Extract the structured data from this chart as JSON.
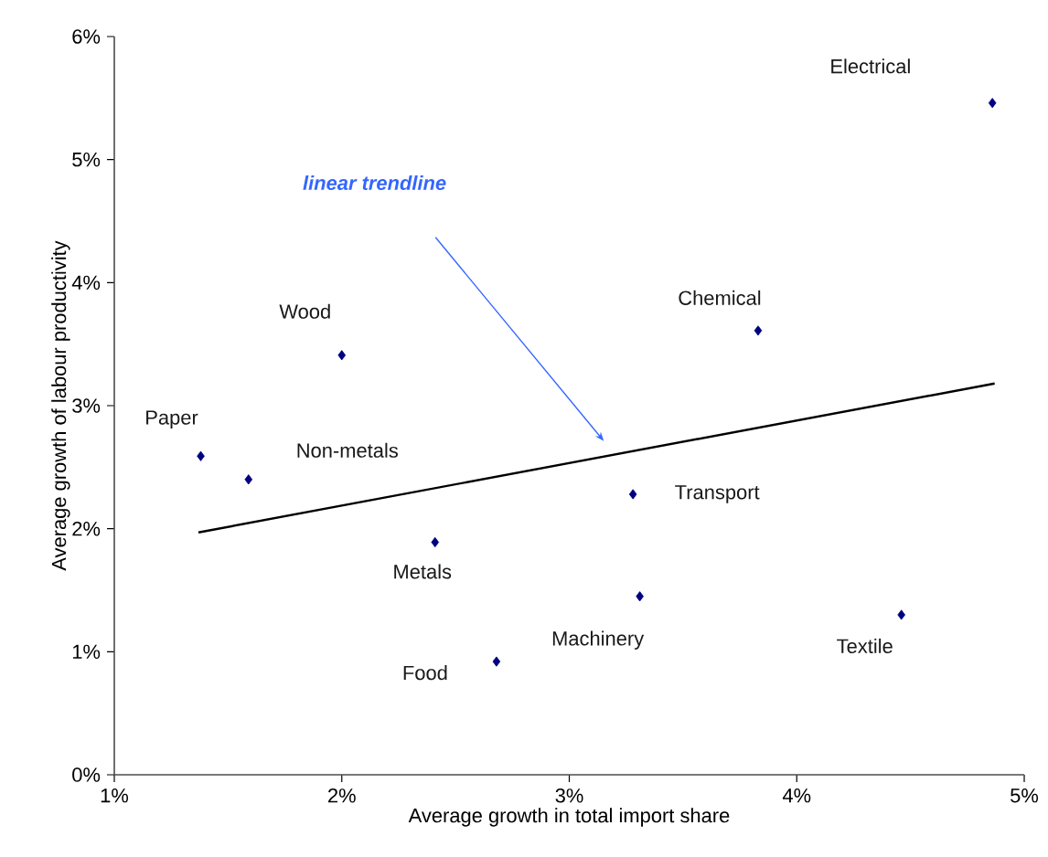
{
  "chart_data": {
    "type": "scatter",
    "xlabel": "Average growth in total import share",
    "ylabel": "Average growth of labour productivity",
    "xlim": [
      1,
      5
    ],
    "ylim": [
      0,
      6
    ],
    "xticks": [
      {
        "value": 1,
        "label": "1%"
      },
      {
        "value": 2,
        "label": "2%"
      },
      {
        "value": 3,
        "label": "3%"
      },
      {
        "value": 4,
        "label": "4%"
      },
      {
        "value": 5,
        "label": "5%"
      }
    ],
    "yticks": [
      {
        "value": 0,
        "label": "0%"
      },
      {
        "value": 1,
        "label": "1%"
      },
      {
        "value": 2,
        "label": "2%"
      },
      {
        "value": 3,
        "label": "3%"
      },
      {
        "value": 4,
        "label": "4%"
      },
      {
        "value": 5,
        "label": "5%"
      },
      {
        "value": 6,
        "label": "6%"
      }
    ],
    "grid": false,
    "series": [
      {
        "type": "scatter",
        "color": "#000080",
        "marker": "diamond",
        "x": [
          1.38,
          1.59,
          2.0,
          2.41,
          2.68,
          3.31,
          3.28,
          3.83,
          4.46,
          4.86
        ],
        "values": [
          2.59,
          2.4,
          3.41,
          1.89,
          0.92,
          1.45,
          2.28,
          3.61,
          1.3,
          5.46
        ]
      },
      {
        "type": "line",
        "color": "#000000",
        "marker": "none",
        "line_style": "solid",
        "x": [
          1.37,
          4.87
        ],
        "values": [
          1.97,
          3.18
        ]
      }
    ],
    "annotations": [
      "linear trendline",
      {
        "text": "Paper",
        "x": 1.38,
        "y": 2.59
      },
      {
        "text": "Non-metals",
        "x": 1.59,
        "y": 2.4
      },
      {
        "text": "Wood",
        "x": 2.0,
        "y": 3.41
      },
      {
        "text": "Metals",
        "x": 2.41,
        "y": 1.89
      },
      {
        "text": "Food",
        "x": 2.68,
        "y": 0.92
      },
      {
        "text": "Machinery",
        "x": 3.31,
        "y": 1.45
      },
      {
        "text": "Transport",
        "x": 3.28,
        "y": 2.28
      },
      {
        "text": "Chemical",
        "x": 3.83,
        "y": 3.61
      },
      {
        "text": "Textile",
        "x": 4.46,
        "y": 1.3
      },
      "Electrical"
    ]
  }
}
